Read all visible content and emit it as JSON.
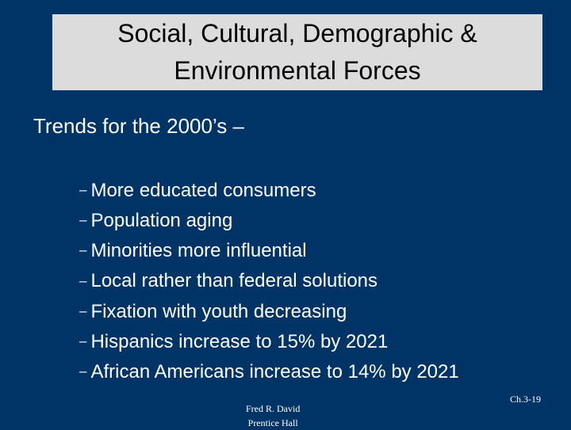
{
  "slide": {
    "title_line1": "Social, Cultural, Demographic &",
    "title_line2": "Environmental Forces",
    "subtitle": "Trends for the 2000’s –",
    "dash": "–",
    "bullets": [
      "More educated consumers",
      "Population aging",
      "Minorities more influential",
      "Local rather than federal solutions",
      "Fixation with youth decreasing",
      "Hispanics increase to 15% by 2021",
      "African Americans increase to 14% by 2021"
    ],
    "footer_author": "Fred R. David",
    "footer_publisher": "Prentice Hall",
    "page_number": "Ch.3-19"
  },
  "colors": {
    "background": "#003366",
    "title_box": "#dcdcdc",
    "text": "#ffffff"
  }
}
